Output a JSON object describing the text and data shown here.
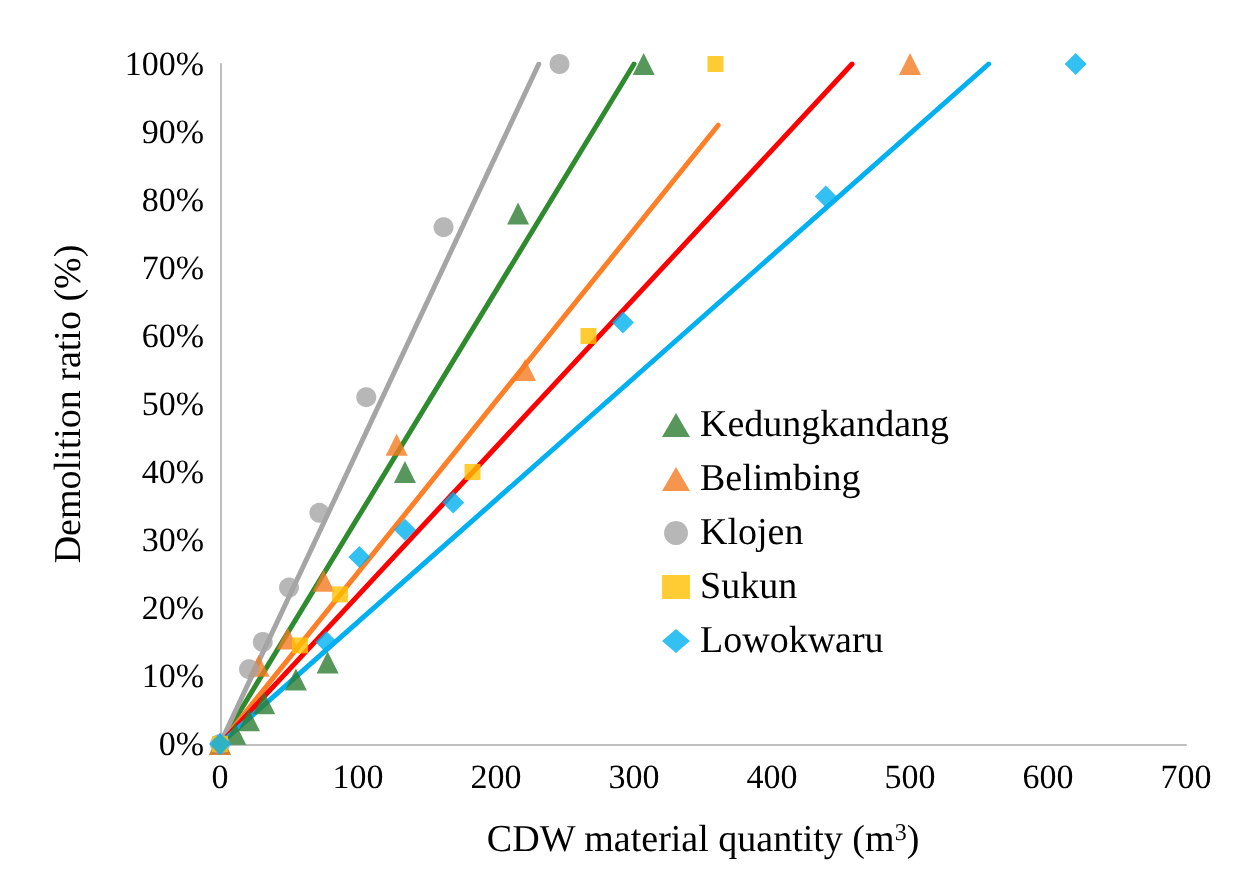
{
  "chart_data": {
    "type": "scatter",
    "xlabel": "CDW material quantity (m$^{3}$)",
    "ylabel": "Demolition ratio (%)",
    "xlim": [
      0,
      700
    ],
    "xticks": [
      0,
      100,
      200,
      300,
      400,
      500,
      600,
      700
    ],
    "ylim": [
      0,
      100
    ],
    "yticks": [
      {
        "value": 0,
        "label": "0%"
      },
      {
        "value": 10,
        "label": "10%"
      },
      {
        "value": 20,
        "label": "20%"
      },
      {
        "value": 30,
        "label": "30%"
      },
      {
        "value": 40,
        "label": "40%"
      },
      {
        "value": 50,
        "label": "50%"
      },
      {
        "value": 60,
        "label": "60%"
      },
      {
        "value": 70,
        "label": "70%"
      },
      {
        "value": 80,
        "label": "80%"
      },
      {
        "value": 90,
        "label": "90%"
      },
      {
        "value": 100,
        "label": "100%"
      }
    ],
    "grid": false,
    "legend": "right",
    "line_style": "solid",
    "series": [
      {
        "name": "Kedungkandang",
        "marker": "triangle",
        "color": "#2e7d32",
        "x": [
          0,
          11,
          21,
          32,
          55,
          78,
          134,
          216,
          307
        ],
        "values": [
          0,
          1.5,
          3.5,
          6,
          9.5,
          12,
          40,
          78,
          100
        ]
      },
      {
        "name": "Belimbing",
        "marker": "triangle",
        "color": "#f47b20",
        "x": [
          0,
          28,
          49,
          75,
          128,
          221,
          500
        ],
        "values": [
          0,
          11.5,
          15.5,
          24,
          44,
          55,
          100
        ]
      },
      {
        "name": "Klojen",
        "marker": "circle",
        "color": "#a5a5a5",
        "x": [
          0,
          21,
          31,
          50,
          72,
          106,
          162,
          246
        ],
        "values": [
          0,
          11,
          15,
          23,
          34,
          51,
          76,
          100
        ]
      },
      {
        "name": "Sukun",
        "marker": "square",
        "color": "#ffc000",
        "x": [
          0,
          58,
          87,
          183,
          267,
          359
        ],
        "values": [
          0,
          14.5,
          22,
          40,
          60,
          100
        ]
      },
      {
        "name": "Lowokwaru",
        "marker": "diamond",
        "color": "#00b0f0",
        "x": [
          0,
          77,
          101,
          134,
          169,
          292,
          439,
          620
        ],
        "values": [
          0,
          15,
          27.5,
          31.5,
          35.5,
          62,
          80.5,
          100
        ]
      },
      {
        "type": "line",
        "color": "#2e8b2e",
        "x": [
          0,
          300
        ],
        "values": [
          0,
          100
        ]
      },
      {
        "type": "line",
        "color": "#ff7f27",
        "x": [
          0,
          361
        ],
        "values": [
          0,
          91
        ]
      },
      {
        "type": "line",
        "color": "#a5a5a5",
        "x": [
          0,
          231
        ],
        "values": [
          0,
          100
        ]
      },
      {
        "type": "line",
        "color": "#ff0000",
        "x": [
          0,
          458
        ],
        "values": [
          0,
          100
        ]
      },
      {
        "type": "line",
        "color": "#00b0f0",
        "x": [
          0,
          557
        ],
        "values": [
          0,
          100
        ]
      }
    ]
  }
}
